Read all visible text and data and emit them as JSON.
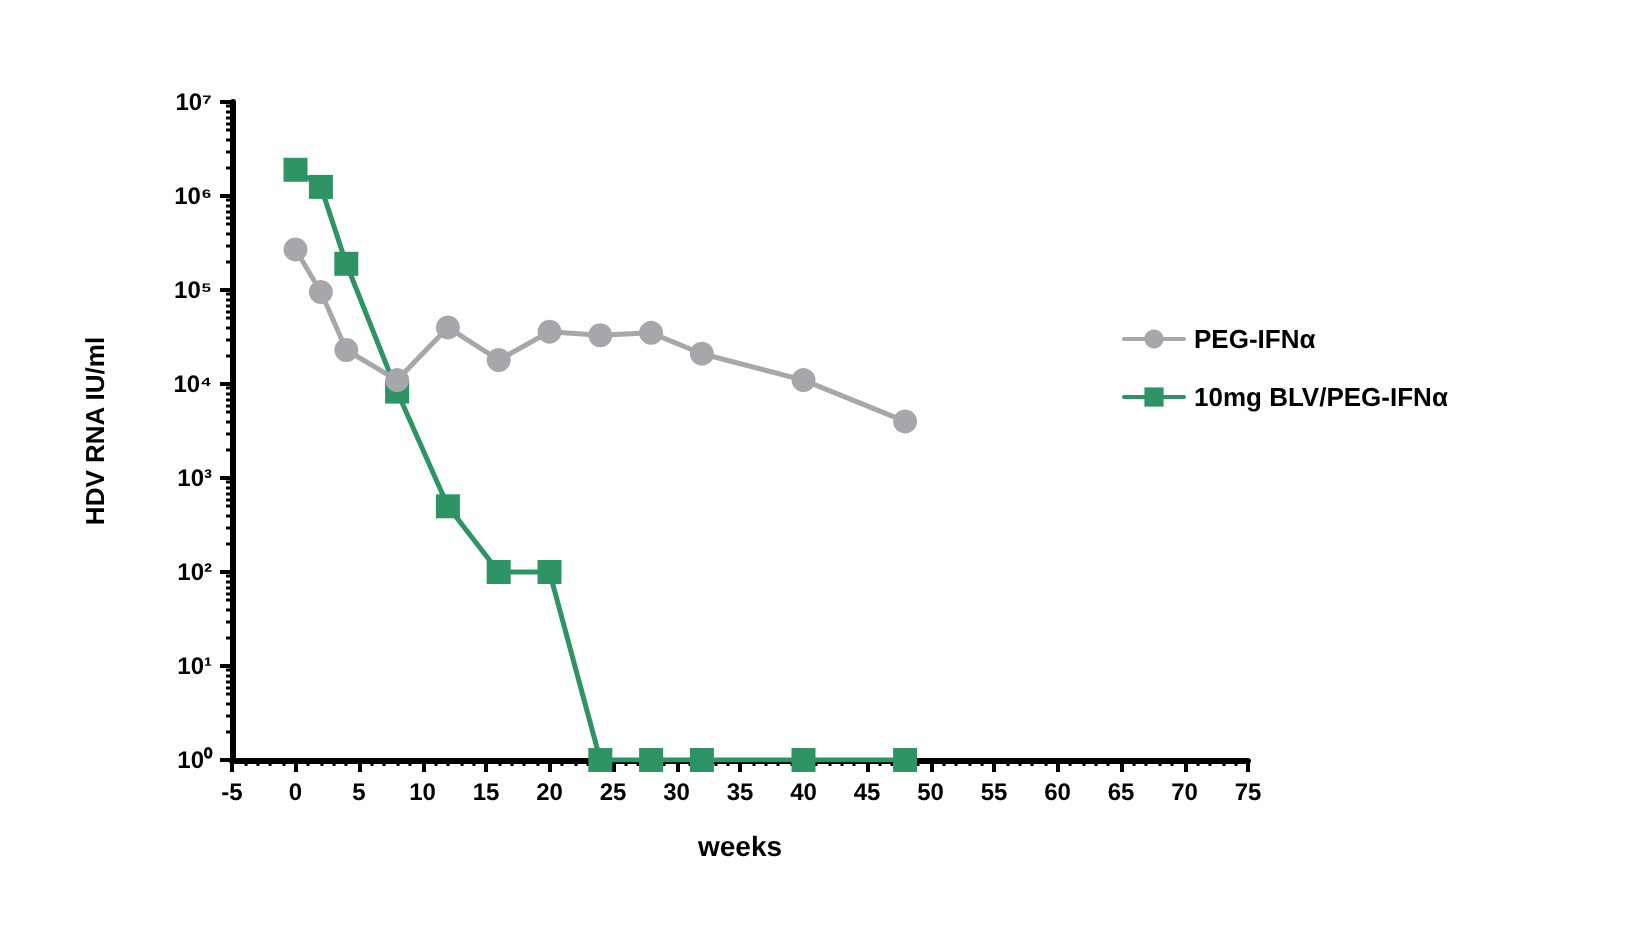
{
  "chart_data": {
    "type": "line",
    "xlabel": "weeks",
    "ylabel": "HDV RNA IU/ml",
    "log": "y",
    "grid": false,
    "legend": "right",
    "xlim": [
      -5,
      75
    ],
    "xticks": [
      -5,
      0,
      5,
      10,
      15,
      20,
      25,
      30,
      35,
      40,
      45,
      50,
      55,
      60,
      65,
      70,
      75
    ],
    "ylim": [
      1,
      10000000
    ],
    "yticks": [
      {
        "value": 1,
        "label": "10⁰"
      },
      {
        "value": 10,
        "label": "10¹"
      },
      {
        "value": 100,
        "label": "10²"
      },
      {
        "value": 1000,
        "label": "10³"
      },
      {
        "value": 10000,
        "label": "10⁴"
      },
      {
        "value": 100000,
        "label": "10⁵"
      },
      {
        "value": 1000000,
        "label": "10⁶"
      },
      {
        "value": 10000000,
        "label": "10⁷"
      }
    ],
    "x": [
      0,
      2,
      4,
      8,
      12,
      16,
      20,
      24,
      28,
      32,
      40,
      48
    ],
    "series": [
      {
        "name": "PEG-IFNα",
        "color": "#a7a7ab",
        "marker": "circle",
        "values": [
          270000,
          95000,
          23000,
          11000,
          40000,
          18000,
          36000,
          33000,
          35000,
          21000,
          11000,
          4000
        ]
      },
      {
        "name": "10mg BLV/PEG-IFNα",
        "color": "#2e9465",
        "marker": "square",
        "values": [
          1900000,
          1250000,
          190000,
          8300,
          500,
          100,
          100,
          1,
          1,
          1,
          1,
          1
        ]
      }
    ]
  }
}
